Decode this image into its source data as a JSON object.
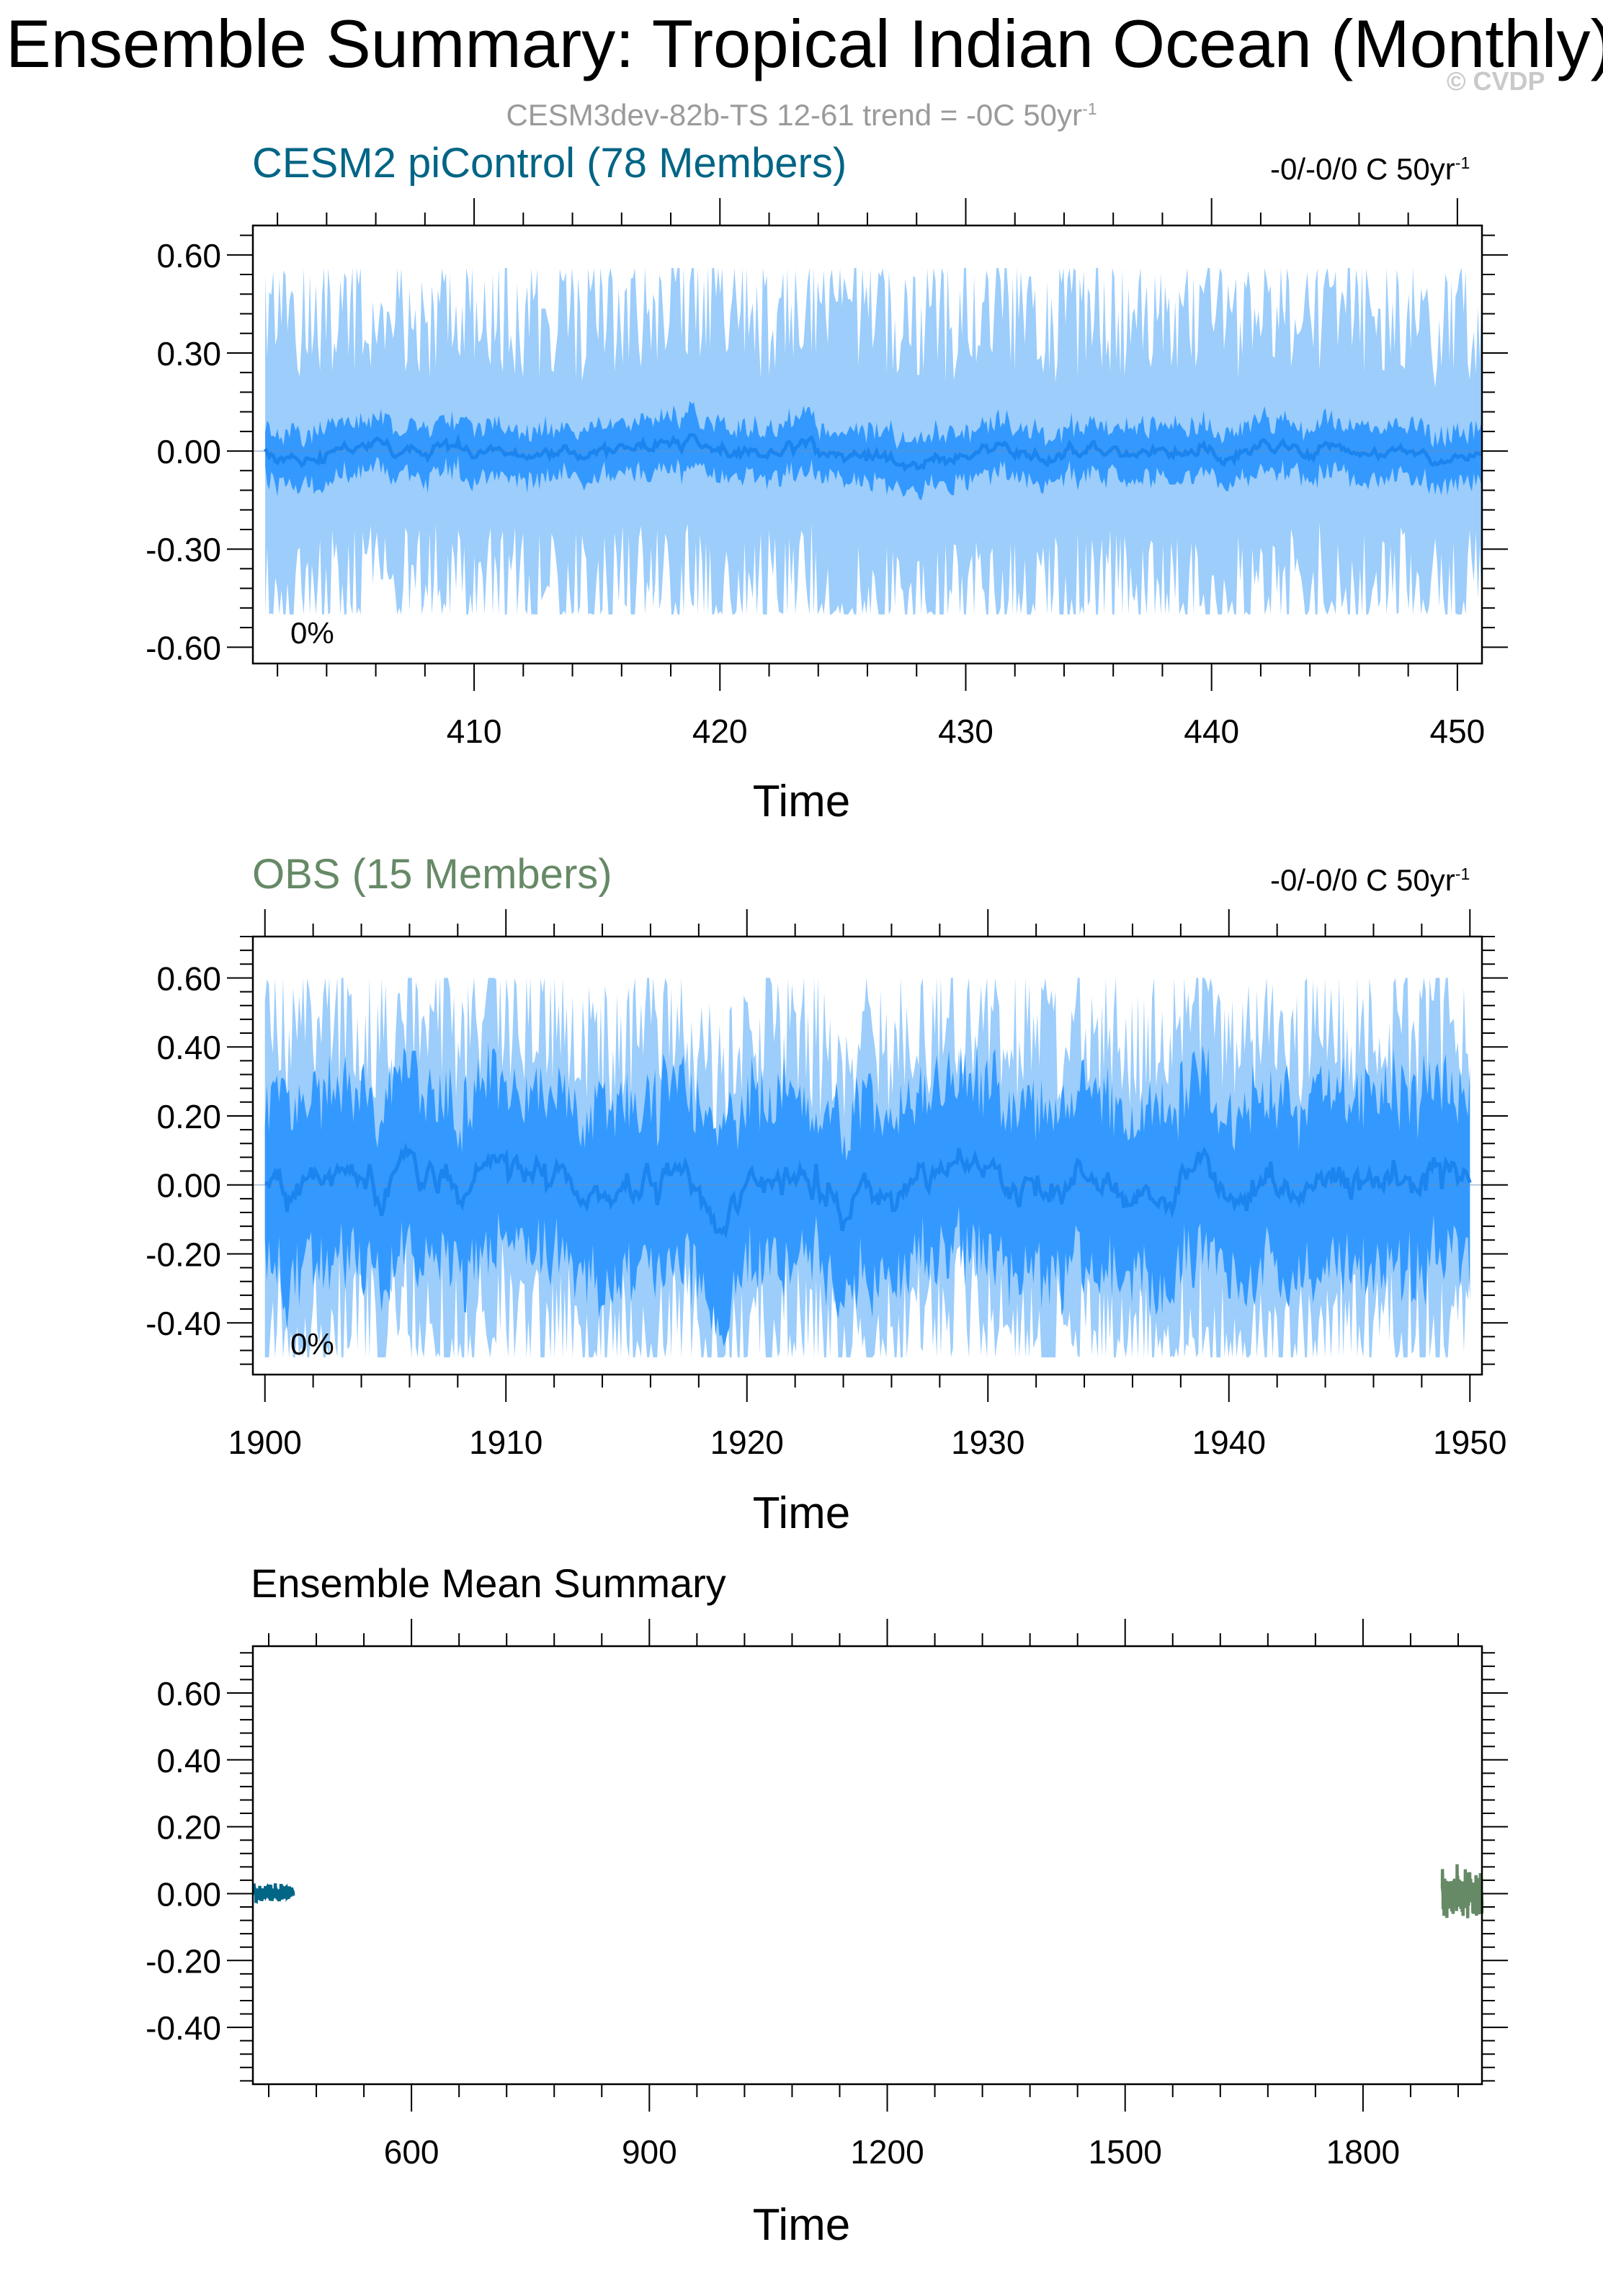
{
  "page": {
    "title": "Ensemble Summary: Tropical Indian Ocean (Monthly)",
    "watermark": "© CVDP",
    "subtitle": "CESM3dev-82b-TS 12-61 trend = -0C 50yr",
    "subtitle_sup": "-1"
  },
  "colors": {
    "band_outer": "#9ccdfb",
    "band_inner": "#3399ff",
    "mean_line": "#1b84ee",
    "cesm2": "#016585",
    "obs": "#668966"
  },
  "chart_data": [
    {
      "type": "area",
      "title": "CESM2 piControl (78 Members)",
      "trend_label": "-0/-0/0 C 50yr",
      "trend_sup": "-1",
      "percent_label": "0%",
      "xlabel": "Time",
      "xlim": [
        401,
        451
      ],
      "ylim": [
        -0.65,
        0.69
      ],
      "xticks": [
        410,
        420,
        430,
        440,
        450
      ],
      "xtick_labels": [
        "410",
        "420",
        "430",
        "440",
        "450"
      ],
      "yticks": [
        -0.6,
        -0.3,
        0.0,
        0.3,
        0.6
      ],
      "ytick_labels": [
        "-0.60",
        "-0.30",
        "0.00",
        "0.30",
        "0.60"
      ],
      "grid": false,
      "series": [
        {
          "name": "",
          "stat": "min-max",
          "x_range": [
            401.5,
            451
          ],
          "seed": 7,
          "mean_offset": 0,
          "inner_range": [
            -0.06,
            0.08
          ],
          "outer_range": [
            -0.5,
            0.56
          ]
        },
        {
          "name": "",
          "stat": "10-90 percentile"
        },
        {
          "name": "",
          "stat": "ensemble mean",
          "amplitude": 0.05
        }
      ]
    },
    {
      "type": "area",
      "title": "OBS (15 Members)",
      "trend_label": "-0/-0/0 C 50yr",
      "trend_sup": "-1",
      "percent_label": "0%",
      "xlabel": "Time",
      "xlim": [
        1899.5,
        1950.5
      ],
      "ylim": [
        -0.55,
        0.72
      ],
      "xticks": [
        1900,
        1910,
        1920,
        1930,
        1940,
        1950
      ],
      "xtick_labels": [
        "1900",
        "1910",
        "1920",
        "1930",
        "1940",
        "1950"
      ],
      "yticks": [
        -0.4,
        -0.2,
        0.0,
        0.2,
        0.4,
        0.6
      ],
      "ytick_labels": [
        "-0.40",
        "-0.20",
        "0.00",
        "0.20",
        "0.40",
        "0.60"
      ],
      "grid": false,
      "series": [
        {
          "name": "",
          "stat": "min-max",
          "x_range": [
            1900,
            1950
          ],
          "seed": 23,
          "inner_range": [
            -0.25,
            0.2
          ],
          "outer_range": [
            -0.5,
            0.6
          ]
        },
        {
          "name": "",
          "stat": "10-90 percentile"
        },
        {
          "name": "",
          "stat": "ensemble mean",
          "amplitude": 0.12
        }
      ]
    },
    {
      "type": "line",
      "title": "Ensemble Mean Summary",
      "xlabel": "Time",
      "xlim": [
        400,
        1950
      ],
      "ylim": [
        -0.57,
        0.74
      ],
      "xticks": [
        600,
        900,
        1200,
        1500,
        1800
      ],
      "xtick_labels": [
        "600",
        "900",
        "1200",
        "1500",
        "1800"
      ],
      "yticks": [
        -0.4,
        -0.2,
        0.0,
        0.2,
        0.4,
        0.6
      ],
      "ytick_labels": [
        "-0.40",
        "-0.20",
        "0.00",
        "0.20",
        "0.40",
        "0.60"
      ],
      "grid": false,
      "series": [
        {
          "name": "",
          "color": "#016585",
          "x_range": [
            401,
            451
          ],
          "amplitude": 0.05,
          "seed": 7
        },
        {
          "name": "",
          "color": "#668966",
          "x_range": [
            1900,
            1950
          ],
          "amplitude": 0.15,
          "seed": 23
        }
      ]
    }
  ]
}
